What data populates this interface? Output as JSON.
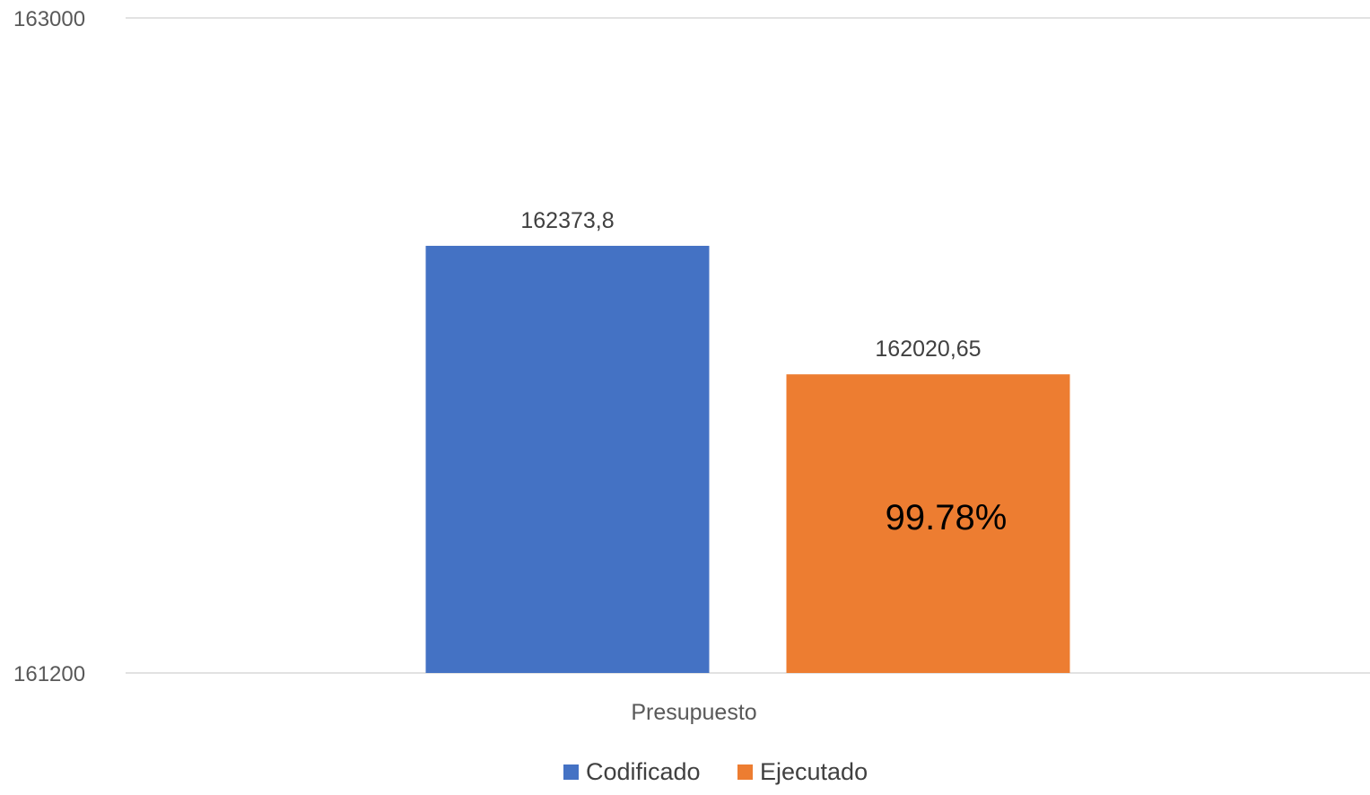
{
  "chart_data": {
    "type": "bar",
    "categories": [
      "Presupuesto"
    ],
    "series": [
      {
        "name": "Codificado",
        "values": [
          162373.8
        ],
        "label": "162373,8",
        "color": "#4472C4"
      },
      {
        "name": "Ejecutado",
        "values": [
          162020.65
        ],
        "label": "162020,65",
        "color": "#ED7D31"
      }
    ],
    "ylim": [
      161200,
      163000
    ],
    "yticks": [
      {
        "value": 161200,
        "label": "161200"
      },
      {
        "value": 163000,
        "label": "163000"
      }
    ],
    "annotation": {
      "text": "99.78%",
      "series": "Ejecutado",
      "category": "Presupuesto"
    },
    "grid": true,
    "legend": "bottom-center",
    "title": "",
    "xlabel": "",
    "ylabel": ""
  }
}
